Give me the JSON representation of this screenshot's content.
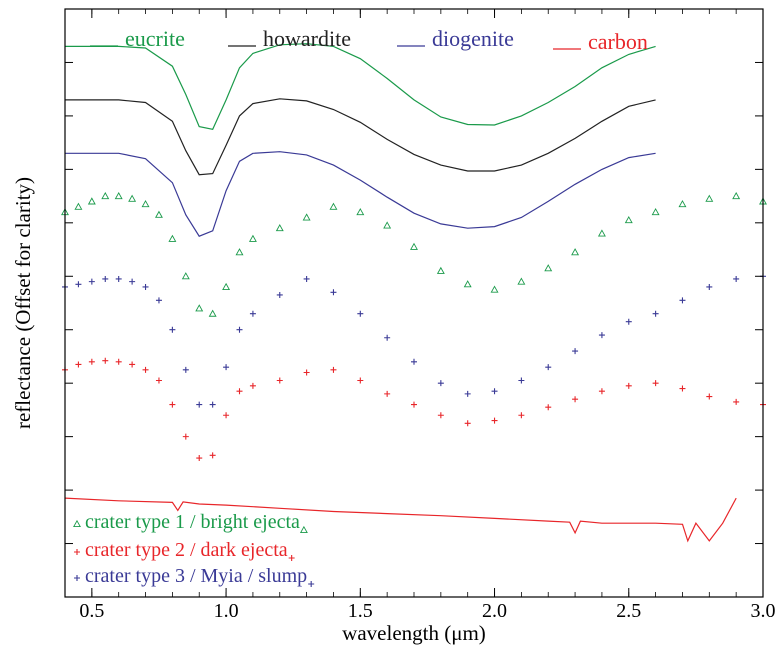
{
  "chart_data": {
    "type": "line",
    "title": "",
    "xlabel": "wavelength (μm)",
    "ylabel": "reflectance (Offset for clarity)",
    "xlim": [
      0.4,
      3.0
    ],
    "ylim": [
      0,
      11
    ],
    "x_ticks": [
      0.5,
      1.0,
      1.5,
      2.0,
      2.5,
      3.0
    ],
    "x_tick_labels": [
      "0.5",
      "1.0",
      "1.5",
      "2.0",
      "2.5",
      "3.0"
    ],
    "y_tick_labels_shown": false,
    "grid": false,
    "legend_top": [
      {
        "label": "eucrite",
        "color": "#1a9a4a",
        "marker": "line"
      },
      {
        "label": "howardite",
        "color": "#222222",
        "marker": "line"
      },
      {
        "label": "diogenite",
        "color": "#3a3a96",
        "marker": "line"
      },
      {
        "label": "carbon",
        "color": "#e8262a",
        "marker": "line"
      }
    ],
    "legend_bottom": [
      {
        "label": "crater type 1 / bright ejecta",
        "color": "#1a9a4a",
        "marker": "triangle"
      },
      {
        "label": "crater type 2 / dark ejecta",
        "color": "#e8262a",
        "marker": "plus"
      },
      {
        "label": "crater type 3 / Myia / slump",
        "color": "#3a3a96",
        "marker": "plus"
      }
    ],
    "series": [
      {
        "name": "eucrite",
        "style": "line",
        "color": "#1a9a4a",
        "x": [
          0.4,
          0.5,
          0.6,
          0.7,
          0.8,
          0.85,
          0.9,
          0.95,
          1.0,
          1.05,
          1.1,
          1.2,
          1.3,
          1.4,
          1.5,
          1.6,
          1.7,
          1.8,
          1.9,
          2.0,
          2.1,
          2.2,
          2.3,
          2.4,
          2.5,
          2.6
        ],
        "y": [
          10.3,
          10.3,
          10.3,
          10.27,
          9.93,
          9.4,
          8.8,
          8.75,
          9.3,
          9.9,
          10.17,
          10.33,
          10.35,
          10.3,
          10.07,
          9.7,
          9.3,
          8.98,
          8.84,
          8.83,
          9.0,
          9.25,
          9.55,
          9.9,
          10.15,
          10.3
        ]
      },
      {
        "name": "howardite",
        "style": "line",
        "color": "#222222",
        "x": [
          0.4,
          0.5,
          0.6,
          0.7,
          0.8,
          0.85,
          0.9,
          0.95,
          1.0,
          1.05,
          1.1,
          1.2,
          1.3,
          1.4,
          1.5,
          1.6,
          1.7,
          1.8,
          1.9,
          2.0,
          2.1,
          2.2,
          2.3,
          2.4,
          2.5,
          2.6
        ],
        "y": [
          9.3,
          9.3,
          9.3,
          9.25,
          8.9,
          8.35,
          7.9,
          7.92,
          8.45,
          9.0,
          9.23,
          9.32,
          9.28,
          9.12,
          8.88,
          8.56,
          8.28,
          8.08,
          7.97,
          7.97,
          8.08,
          8.3,
          8.58,
          8.9,
          9.18,
          9.3
        ]
      },
      {
        "name": "diogenite",
        "style": "line",
        "color": "#3a3a96",
        "x": [
          0.4,
          0.5,
          0.6,
          0.7,
          0.8,
          0.85,
          0.9,
          0.95,
          1.0,
          1.05,
          1.1,
          1.2,
          1.3,
          1.4,
          1.5,
          1.6,
          1.7,
          1.8,
          1.9,
          2.0,
          2.1,
          2.2,
          2.3,
          2.4,
          2.5,
          2.6
        ],
        "y": [
          8.3,
          8.3,
          8.3,
          8.2,
          7.75,
          7.15,
          6.75,
          6.85,
          7.6,
          8.15,
          8.3,
          8.33,
          8.27,
          8.08,
          7.8,
          7.48,
          7.18,
          6.98,
          6.9,
          6.93,
          7.1,
          7.4,
          7.72,
          8.0,
          8.22,
          8.3
        ]
      },
      {
        "name": "crater type 1 / bright ejecta",
        "style": "triangle",
        "color": "#1a9a4a",
        "x": [
          0.4,
          0.45,
          0.5,
          0.55,
          0.6,
          0.65,
          0.7,
          0.75,
          0.8,
          0.85,
          0.9,
          0.95,
          1.0,
          1.05,
          1.1,
          1.2,
          1.3,
          1.4,
          1.5,
          1.6,
          1.7,
          1.8,
          1.9,
          2.0,
          2.1,
          2.2,
          2.3,
          2.4,
          2.5,
          2.6,
          2.7,
          2.8,
          2.9,
          3.0
        ],
        "y": [
          7.2,
          7.3,
          7.4,
          7.5,
          7.5,
          7.45,
          7.35,
          7.15,
          6.7,
          6.0,
          5.4,
          5.3,
          5.8,
          6.45,
          6.7,
          6.9,
          7.1,
          7.3,
          7.2,
          6.95,
          6.55,
          6.1,
          5.85,
          5.75,
          5.9,
          6.15,
          6.45,
          6.8,
          7.05,
          7.2,
          7.35,
          7.45,
          7.5,
          7.4
        ]
      },
      {
        "name": "crater type 3 / Myia / slump",
        "style": "plus",
        "color": "#3a3a96",
        "x": [
          0.4,
          0.45,
          0.5,
          0.55,
          0.6,
          0.65,
          0.7,
          0.75,
          0.8,
          0.85,
          0.9,
          0.95,
          1.0,
          1.05,
          1.1,
          1.2,
          1.3,
          1.4,
          1.5,
          1.6,
          1.7,
          1.8,
          1.9,
          2.0,
          2.1,
          2.2,
          2.3,
          2.4,
          2.5,
          2.6,
          2.7,
          2.8,
          2.9,
          3.0
        ],
        "y": [
          5.8,
          5.85,
          5.9,
          5.95,
          5.95,
          5.9,
          5.8,
          5.55,
          5.0,
          4.25,
          3.6,
          3.6,
          4.3,
          5.0,
          5.3,
          5.65,
          5.95,
          5.7,
          5.3,
          4.85,
          4.4,
          4.0,
          3.8,
          3.85,
          4.05,
          4.3,
          4.6,
          4.9,
          5.15,
          5.3,
          5.55,
          5.8,
          5.95,
          6.0
        ]
      },
      {
        "name": "crater type 2 / dark ejecta",
        "style": "plus",
        "color": "#e8262a",
        "x": [
          0.4,
          0.45,
          0.5,
          0.55,
          0.6,
          0.65,
          0.7,
          0.75,
          0.8,
          0.85,
          0.9,
          0.95,
          1.0,
          1.05,
          1.1,
          1.2,
          1.3,
          1.4,
          1.5,
          1.6,
          1.7,
          1.8,
          1.9,
          2.0,
          2.1,
          2.2,
          2.3,
          2.4,
          2.5,
          2.6,
          2.7,
          2.8,
          2.9,
          3.0
        ],
        "y": [
          4.25,
          4.35,
          4.4,
          4.42,
          4.4,
          4.35,
          4.25,
          4.05,
          3.6,
          3.0,
          2.6,
          2.65,
          3.4,
          3.85,
          3.95,
          4.05,
          4.2,
          4.25,
          4.05,
          3.8,
          3.6,
          3.4,
          3.25,
          3.3,
          3.4,
          3.55,
          3.7,
          3.85,
          3.95,
          4.0,
          3.9,
          3.75,
          3.65,
          3.6
        ]
      },
      {
        "name": "carbon",
        "style": "line",
        "color": "#e8262a",
        "x": [
          0.4,
          0.6,
          0.8,
          0.82,
          0.84,
          0.9,
          1.0,
          1.2,
          1.4,
          1.6,
          1.8,
          2.0,
          2.2,
          2.28,
          2.3,
          2.32,
          2.4,
          2.6,
          2.7,
          2.72,
          2.75,
          2.8,
          2.85,
          2.9
        ],
        "y": [
          1.85,
          1.8,
          1.77,
          1.62,
          1.78,
          1.74,
          1.72,
          1.66,
          1.6,
          1.56,
          1.52,
          1.47,
          1.42,
          1.4,
          1.2,
          1.42,
          1.38,
          1.38,
          1.36,
          1.05,
          1.38,
          1.05,
          1.38,
          1.85
        ]
      }
    ]
  }
}
